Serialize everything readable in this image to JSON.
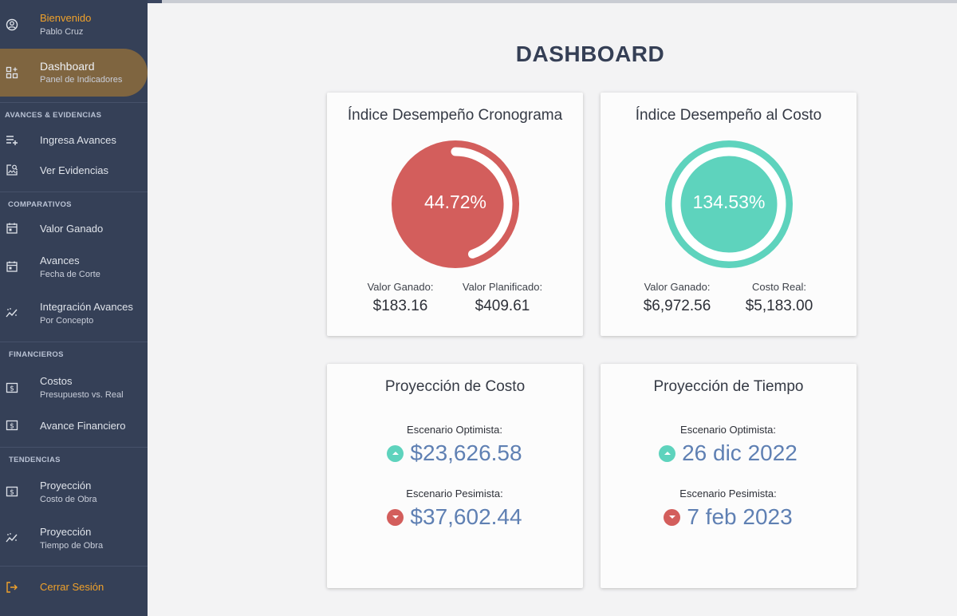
{
  "sidebar": {
    "user": {
      "greeting": "Bienvenido",
      "name": "Pablo Cruz"
    },
    "dashboard": {
      "label": "Dashboard",
      "sub": "Panel de Indicadores"
    },
    "sections": {
      "avances": "AVANCES & EVIDENCIAS",
      "comparativos": "COMPARATIVOS",
      "financieros": "FINANCIEROS",
      "tendencias": "TENDENCIAS"
    },
    "items": [
      {
        "label": "Ingresa Avances",
        "sub": ""
      },
      {
        "label": "Ver Evidencias",
        "sub": ""
      },
      {
        "label": "Valor Ganado",
        "sub": ""
      },
      {
        "label": "Avances",
        "sub": "Fecha de Corte"
      },
      {
        "label": "Integración Avances",
        "sub": "Por Concepto"
      },
      {
        "label": "Costos",
        "sub": "Presupuesto vs. Real"
      },
      {
        "label": "Avance Financiero",
        "sub": ""
      },
      {
        "label": "Proyección",
        "sub": "Costo de Obra"
      },
      {
        "label": "Proyección",
        "sub": "Tiempo de Obra"
      }
    ],
    "logout": "Cerrar Sesión"
  },
  "main": {
    "title": "DASHBOARD",
    "spi": {
      "title": "Índice Desempeño Cronograma",
      "percent_label": "44.72%",
      "percent": 44.72,
      "left_label": "Valor Ganado:",
      "left_value": "$183.16",
      "right_label": "Valor Planificado:",
      "right_value": "$409.61"
    },
    "cpi": {
      "title": "Índice Desempeño al Costo",
      "percent_label": "134.53%",
      "percent": 134.53,
      "left_label": "Valor Ganado:",
      "left_value": "$6,972.56",
      "right_label": "Costo Real:",
      "right_value": "$5,183.00"
    },
    "cost_projection": {
      "title": "Proyección de Costo",
      "optimistic_label": "Escenario Optimista:",
      "optimistic_value": "$23,626.58",
      "pessimistic_label": "Escenario Pesimista:",
      "pessimistic_value": "$37,602.44"
    },
    "time_projection": {
      "title": "Proyección de Tiempo",
      "optimistic_label": "Escenario Optimista:",
      "optimistic_value": "26 dic 2022",
      "pessimistic_label": "Escenario Pesimista:",
      "pessimistic_value": "7 feb 2023"
    }
  },
  "colors": {
    "sidebar_bg": "#354057",
    "active_bg": "#7f6540",
    "accent_orange": "#f0a12a",
    "gauge_red": "#d35e5c",
    "gauge_teal": "#5ed3bd",
    "value_blue": "#5f80b3"
  },
  "icons": [
    "account-circle-icon",
    "dashboard-grid-icon",
    "playlist-add-icon",
    "image-search-icon",
    "calendar-icon",
    "calendar-icon",
    "trend-icon",
    "dollar-box-icon",
    "dollar-box-icon",
    "dollar-box-icon",
    "trend-icon",
    "logout-icon",
    "arrow-up-icon",
    "arrow-down-icon"
  ]
}
